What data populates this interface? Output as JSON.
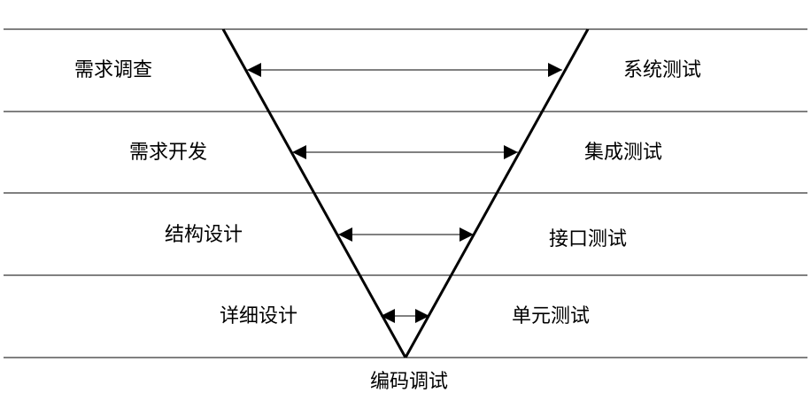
{
  "left_stages": [
    "需求调查",
    "需求开发",
    "结构设计",
    "详细设计"
  ],
  "right_stages": [
    "系统测试",
    "集成测试",
    "接口测试",
    "单元测试"
  ],
  "bottom_stage": "编码调试",
  "colors": {
    "line": "#000000",
    "background": "#ffffff"
  }
}
